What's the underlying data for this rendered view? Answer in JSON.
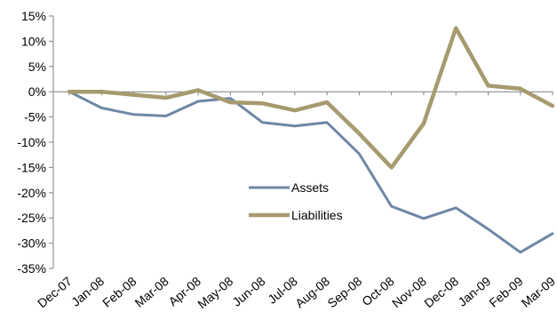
{
  "chart_data": {
    "type": "line",
    "title": "",
    "xlabel": "",
    "ylabel": "",
    "categories": [
      "Dec-07",
      "Jan-08",
      "Feb-08",
      "Mar-08",
      "Apr-08",
      "May-08",
      "Jun-08",
      "Jul-08",
      "Aug-08",
      "Sep-08",
      "Oct-08",
      "Nov-08",
      "Dec-08",
      "Jan-09",
      "Feb-09",
      "Mar-09"
    ],
    "y_ticks": [
      "15%",
      "10%",
      "5%",
      "0%",
      "-5%",
      "-10%",
      "-15%",
      "-20%",
      "-25%",
      "-30%",
      "-35%"
    ],
    "ylim": [
      -35,
      15
    ],
    "grid": false,
    "legend_position": "center",
    "series": [
      {
        "name": "Assets",
        "color": "#6E87A6",
        "values": [
          0,
          -3.2,
          -4.5,
          -4.8,
          -1.9,
          -1.3,
          -6.1,
          -6.8,
          -6.1,
          -12.3,
          -22.7,
          -25.1,
          -23.0,
          -27.2,
          -31.8,
          -28.1
        ]
      },
      {
        "name": "Liabilities",
        "color": "#A69A6F",
        "values": [
          0,
          0,
          -0.6,
          -1.2,
          0.3,
          -2.1,
          -2.3,
          -3.7,
          -2.1,
          -8.3,
          -15.0,
          -6.3,
          12.6,
          1.2,
          0.6,
          -2.8
        ]
      }
    ]
  }
}
